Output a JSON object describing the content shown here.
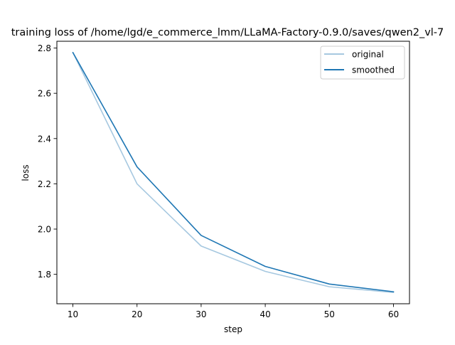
{
  "chart_data": {
    "type": "line",
    "title": "training loss of /home/lgd/e_commerce_lmm/LLaMA-Factory-0.9.0/saves/qwen2_vl-7",
    "xlabel": "step",
    "ylabel": "loss",
    "x": [
      10,
      20,
      30,
      40,
      50,
      60
    ],
    "xlim": [
      7.5,
      62.5
    ],
    "ylim": [
      1.67,
      2.83
    ],
    "xticks": [
      10,
      20,
      30,
      40,
      50,
      60
    ],
    "yticks": [
      1.8,
      2.0,
      2.2,
      2.4,
      2.6,
      2.8
    ],
    "ytick_labels": [
      "1.8",
      "2.0",
      "2.2",
      "2.4",
      "2.6",
      "2.8"
    ],
    "grid": false,
    "legend_position": "top-right",
    "series": [
      {
        "name": "original",
        "values": [
          2.78,
          2.2,
          1.925,
          1.813,
          1.745,
          1.72
        ],
        "color": "#a6c8e0"
      },
      {
        "name": "smoothed",
        "values": [
          2.78,
          2.275,
          1.972,
          1.835,
          1.757,
          1.723
        ],
        "color": "#1f77b4"
      }
    ]
  }
}
